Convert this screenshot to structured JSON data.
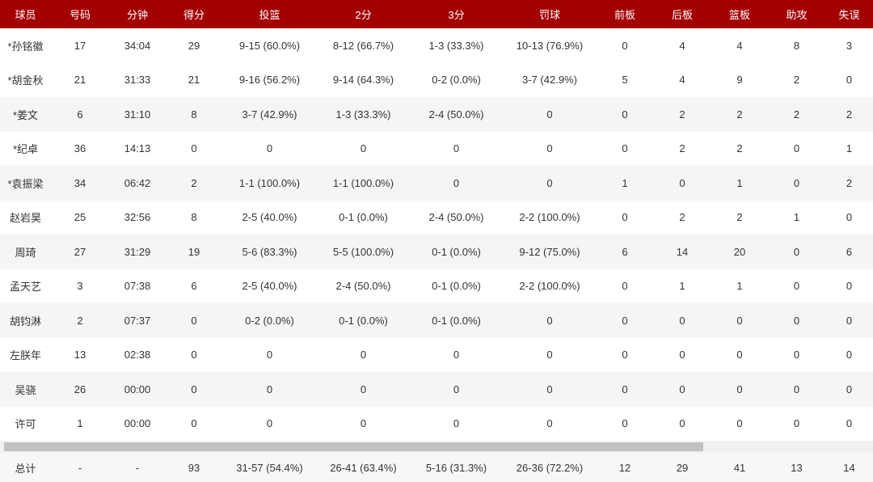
{
  "table": {
    "header": [
      "球员",
      "号码",
      "分钟",
      "得分",
      "投篮",
      "2分",
      "3分",
      "罚球",
      "前板",
      "后板",
      "篮板",
      "助攻",
      "失误"
    ],
    "rows": [
      [
        "*孙铭徽",
        "17",
        "34:04",
        "29",
        "9-15 (60.0%)",
        "8-12 (66.7%)",
        "1-3 (33.3%)",
        "10-13 (76.9%)",
        "0",
        "4",
        "4",
        "8",
        "3"
      ],
      [
        "*胡金秋",
        "21",
        "31:33",
        "21",
        "9-16 (56.2%)",
        "9-14 (64.3%)",
        "0-2 (0.0%)",
        "3-7 (42.9%)",
        "5",
        "4",
        "9",
        "2",
        "0"
      ],
      [
        "*姜文",
        "6",
        "31:10",
        "8",
        "3-7 (42.9%)",
        "1-3 (33.3%)",
        "2-4 (50.0%)",
        "0",
        "0",
        "2",
        "2",
        "2",
        "2"
      ],
      [
        "*纪卓",
        "36",
        "14:13",
        "0",
        "0",
        "0",
        "0",
        "0",
        "0",
        "2",
        "2",
        "0",
        "1"
      ],
      [
        "*袁振梁",
        "34",
        "06:42",
        "2",
        "1-1 (100.0%)",
        "1-1 (100.0%)",
        "0",
        "0",
        "1",
        "0",
        "1",
        "0",
        "2"
      ],
      [
        "赵岩昊",
        "25",
        "32:56",
        "8",
        "2-5 (40.0%)",
        "0-1 (0.0%)",
        "2-4 (50.0%)",
        "2-2 (100.0%)",
        "0",
        "2",
        "2",
        "1",
        "0"
      ],
      [
        "周琦",
        "27",
        "31:29",
        "19",
        "5-6 (83.3%)",
        "5-5 (100.0%)",
        "0-1 (0.0%)",
        "9-12 (75.0%)",
        "6",
        "14",
        "20",
        "0",
        "6"
      ],
      [
        "孟天艺",
        "3",
        "07:38",
        "6",
        "2-5 (40.0%)",
        "2-4 (50.0%)",
        "0-1 (0.0%)",
        "2-2 (100.0%)",
        "0",
        "1",
        "1",
        "0",
        "0"
      ],
      [
        "胡钧淋",
        "2",
        "07:37",
        "0",
        "0-2 (0.0%)",
        "0-1 (0.0%)",
        "0-1 (0.0%)",
        "0",
        "0",
        "0",
        "0",
        "0",
        "0"
      ],
      [
        "左朕年",
        "13",
        "02:38",
        "0",
        "0",
        "0",
        "0",
        "0",
        "0",
        "0",
        "0",
        "0",
        "0"
      ],
      [
        "吴骁",
        "26",
        "00:00",
        "0",
        "0",
        "0",
        "0",
        "0",
        "0",
        "0",
        "0",
        "0",
        "0"
      ],
      [
        "许可",
        "1",
        "00:00",
        "0",
        "0",
        "0",
        "0",
        "0",
        "0",
        "0",
        "0",
        "0",
        "0"
      ]
    ],
    "total": [
      "总计",
      "-",
      "-",
      "93",
      "31-57 (54.4%)",
      "26-41 (63.4%)",
      "5-16 (31.3%)",
      "26-36 (72.2%)",
      "12",
      "29",
      "41",
      "13",
      "14"
    ]
  }
}
